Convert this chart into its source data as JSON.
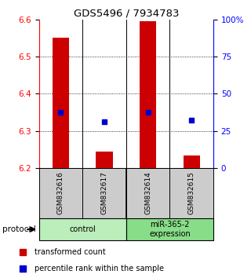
{
  "title": "GDS5496 / 7934783",
  "samples": [
    "GSM832616",
    "GSM832617",
    "GSM832614",
    "GSM832615"
  ],
  "bar_values": [
    6.55,
    6.245,
    6.595,
    6.235
  ],
  "blue_dot_values": [
    6.35,
    6.325,
    6.35,
    6.33
  ],
  "ylim": [
    6.2,
    6.6
  ],
  "yticks_left": [
    6.2,
    6.3,
    6.4,
    6.5,
    6.6
  ],
  "yticks_right": [
    0,
    25,
    50,
    75,
    100
  ],
  "ytick_right_labels": [
    "0",
    "25",
    "50",
    "75",
    "100%"
  ],
  "bar_color": "#cc0000",
  "dot_color": "#0000cc",
  "bar_bottom": 6.2,
  "groups": [
    {
      "label": "control",
      "color": "#bbeebb"
    },
    {
      "label": "miR-365-2\nexpression",
      "color": "#88dd88"
    }
  ],
  "sample_box_color": "#cccccc",
  "legend_red_label": "transformed count",
  "legend_blue_label": "percentile rank within the sample",
  "protocol_label": "protocol",
  "bg_color": "#ffffff"
}
